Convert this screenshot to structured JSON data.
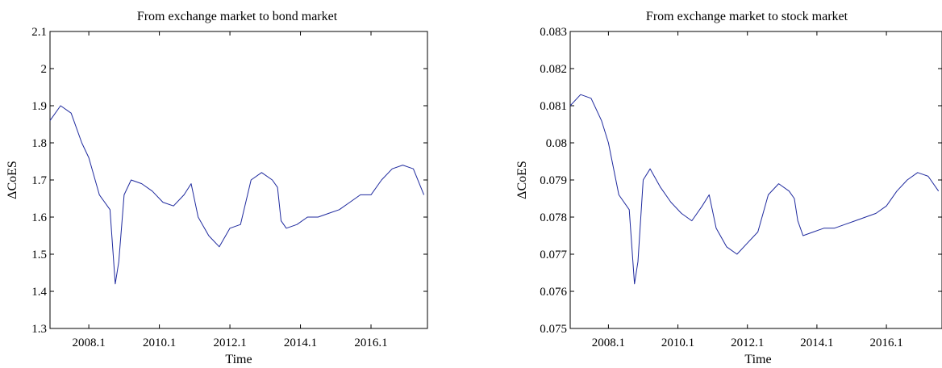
{
  "chart_data": [
    {
      "type": "line",
      "title": "From exchange market to bond market",
      "xlabel": "Time",
      "ylabel": "ΔCoES",
      "xlim": [
        2007.0,
        2017.7
      ],
      "ylim": [
        1.3,
        2.1
      ],
      "xticks": [
        2008.1,
        2010.1,
        2012.1,
        2014.1,
        2016.1
      ],
      "xtick_labels": [
        "2008.1",
        "2010.1",
        "2012.1",
        "2014.1",
        "2016.1"
      ],
      "yticks": [
        1.3,
        1.4,
        1.5,
        1.6,
        1.7,
        1.8,
        1.9,
        2.0,
        2.1
      ],
      "ytick_labels": [
        "1.3",
        "1.4",
        "1.5",
        "1.6",
        "1.7",
        "1.8",
        "1.9",
        "2",
        "2.1"
      ],
      "grid": false,
      "series": [
        {
          "color": "#1f2a9e",
          "x": [
            2007.0,
            2007.3,
            2007.6,
            2007.9,
            2008.1,
            2008.4,
            2008.7,
            2008.85,
            2008.95,
            2009.1,
            2009.3,
            2009.6,
            2009.9,
            2010.2,
            2010.5,
            2010.8,
            2011.0,
            2011.2,
            2011.5,
            2011.8,
            2012.1,
            2012.4,
            2012.7,
            2013.0,
            2013.3,
            2013.45,
            2013.55,
            2013.7,
            2014.0,
            2014.3,
            2014.6,
            2014.9,
            2015.2,
            2015.5,
            2015.8,
            2016.1,
            2016.4,
            2016.7,
            2017.0,
            2017.3,
            2017.6
          ],
          "values": [
            1.86,
            1.9,
            1.88,
            1.8,
            1.76,
            1.66,
            1.62,
            1.42,
            1.48,
            1.66,
            1.7,
            1.69,
            1.67,
            1.64,
            1.63,
            1.66,
            1.69,
            1.6,
            1.55,
            1.52,
            1.57,
            1.58,
            1.7,
            1.72,
            1.7,
            1.68,
            1.59,
            1.57,
            1.58,
            1.6,
            1.6,
            1.61,
            1.62,
            1.64,
            1.66,
            1.66,
            1.7,
            1.73,
            1.74,
            1.73,
            1.66
          ]
        }
      ]
    },
    {
      "type": "line",
      "title": "From exchange market to stock market",
      "xlabel": "Time",
      "ylabel": "ΔCoES",
      "xlim": [
        2007.0,
        2017.7
      ],
      "ylim": [
        0.075,
        0.083
      ],
      "xticks": [
        2008.1,
        2010.1,
        2012.1,
        2014.1,
        2016.1
      ],
      "xtick_labels": [
        "2008.1",
        "2010.1",
        "2012.1",
        "2014.1",
        "2016.1"
      ],
      "yticks": [
        0.075,
        0.076,
        0.077,
        0.078,
        0.079,
        0.08,
        0.081,
        0.082,
        0.083
      ],
      "ytick_labels": [
        "0.075",
        "0.076",
        "0.077",
        "0.078",
        "0.079",
        "0.08",
        "0.081",
        "0.082",
        "0.083"
      ],
      "grid": false,
      "series": [
        {
          "color": "#1f2a9e",
          "x": [
            2007.0,
            2007.3,
            2007.6,
            2007.9,
            2008.1,
            2008.4,
            2008.7,
            2008.85,
            2008.95,
            2009.1,
            2009.3,
            2009.6,
            2009.9,
            2010.2,
            2010.5,
            2010.8,
            2011.0,
            2011.2,
            2011.5,
            2011.8,
            2012.1,
            2012.4,
            2012.7,
            2013.0,
            2013.3,
            2013.45,
            2013.55,
            2013.7,
            2014.0,
            2014.3,
            2014.6,
            2014.9,
            2015.2,
            2015.5,
            2015.8,
            2016.1,
            2016.4,
            2016.7,
            2017.0,
            2017.3,
            2017.6
          ],
          "values": [
            0.081,
            0.0813,
            0.0812,
            0.0806,
            0.08,
            0.0786,
            0.0782,
            0.0762,
            0.0768,
            0.079,
            0.0793,
            0.0788,
            0.0784,
            0.0781,
            0.0779,
            0.0783,
            0.0786,
            0.0777,
            0.0772,
            0.077,
            0.0773,
            0.0776,
            0.0786,
            0.0789,
            0.0787,
            0.0785,
            0.0779,
            0.0775,
            0.0776,
            0.0777,
            0.0777,
            0.0778,
            0.0779,
            0.078,
            0.0781,
            0.0783,
            0.0787,
            0.079,
            0.0792,
            0.0791,
            0.0787
          ]
        }
      ]
    }
  ]
}
